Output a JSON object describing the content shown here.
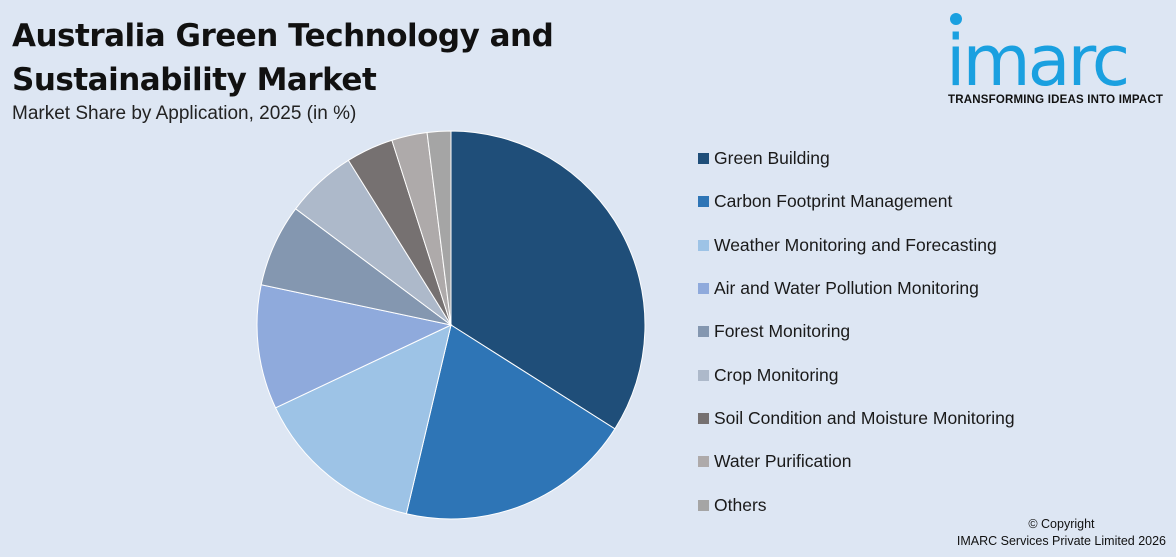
{
  "header": {
    "title_line1": "Australia Green Technology and",
    "title_line2": "Sustainability Market",
    "subtitle": "Market Share by Application, 2025 (in %)"
  },
  "logo": {
    "word": "imarc",
    "tagline": "TRANSFORMING IDEAS INTO IMPACT",
    "color": "#1aa0e0"
  },
  "chart_data": {
    "type": "pie",
    "start_angle_deg": 0,
    "direction": "clockwise",
    "legend_position": "right",
    "slices": [
      {
        "label": "Green Building",
        "value": 34.5,
        "color": "#1f4e79"
      },
      {
        "label": "Carbon Footprint Management",
        "value": 20.0,
        "color": "#2e75b6"
      },
      {
        "label": "Weather Monitoring and Forecasting",
        "value": 14.5,
        "color": "#9dc3e6"
      },
      {
        "label": "Air and Water Pollution Monitoring",
        "value": 10.5,
        "color": "#8faadc"
      },
      {
        "label": "Forest Monitoring",
        "value": 7.0,
        "color": "#8497b0"
      },
      {
        "label": "Crop Monitoring",
        "value": 6.0,
        "color": "#adb9ca"
      },
      {
        "label": "Soil Condition and Moisture Monitoring",
        "value": 4.0,
        "color": "#767171"
      },
      {
        "label": "Water Purification",
        "value": 3.0,
        "color": "#aeaaaa"
      },
      {
        "label": "Others",
        "value": 2.0,
        "color": "#a5a5a5"
      }
    ]
  },
  "footer": {
    "copyright_line1": "© Copyright",
    "copyright_line2": "IMARC Services Private Limited 2026"
  }
}
